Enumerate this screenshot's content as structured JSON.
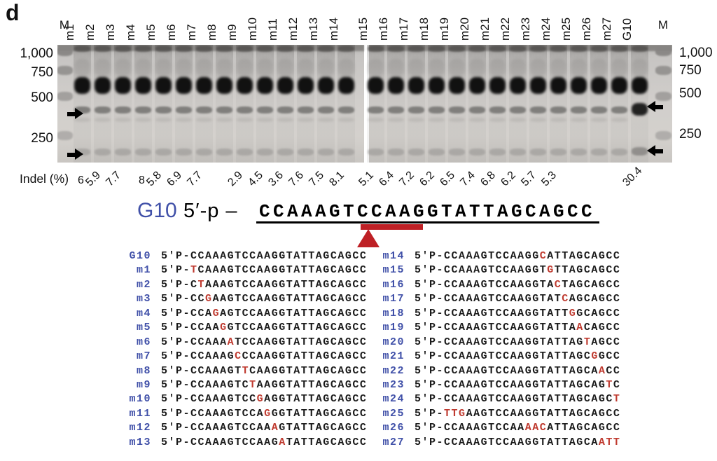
{
  "panel_label": "d",
  "colors": {
    "label_blue": "#4050a8",
    "mutation_red": "#bf3a2f",
    "marker_red": "#be2025"
  },
  "gel": {
    "ladder_label": "M",
    "left_markers": [
      "1,000",
      "750",
      "500",
      "250"
    ],
    "right_markers": [
      "1,000",
      "750",
      "500",
      "250"
    ],
    "panel1_lanes": [
      {
        "label": "m1",
        "indel": "6"
      },
      {
        "label": "m2",
        "indel": "5.9"
      },
      {
        "label": "m3",
        "indel": "7.7"
      },
      {
        "label": "m4",
        "indel": "8"
      },
      {
        "label": "m5",
        "indel": "5.8"
      },
      {
        "label": "m6",
        "indel": "6.9"
      },
      {
        "label": "m7",
        "indel": "7.7"
      },
      {
        "label": "m8",
        "indel": ""
      },
      {
        "label": "m9",
        "indel": "2.9"
      },
      {
        "label": "m10",
        "indel": "4.5"
      },
      {
        "label": "m11",
        "indel": "3.6"
      },
      {
        "label": "m12",
        "indel": "7.6"
      },
      {
        "label": "m13",
        "indel": "7.5"
      },
      {
        "label": "m14",
        "indel": "8.1"
      }
    ],
    "panel2_lanes": [
      {
        "label": "m15",
        "indel": "5.1"
      },
      {
        "label": "m16",
        "indel": "6.4"
      },
      {
        "label": "m17",
        "indel": "7.2"
      },
      {
        "label": "m18",
        "indel": "6.2"
      },
      {
        "label": "m19",
        "indel": "6.5"
      },
      {
        "label": "m20",
        "indel": "7.4"
      },
      {
        "label": "m21",
        "indel": "6.8"
      },
      {
        "label": "m22",
        "indel": "6.2"
      },
      {
        "label": "m23",
        "indel": "5.7"
      },
      {
        "label": "m24",
        "indel": "5.3"
      },
      {
        "label": "m25",
        "indel": ""
      },
      {
        "label": "m26",
        "indel": ""
      },
      {
        "label": "m27",
        "indel": ""
      },
      {
        "label": "G10",
        "indel": "30.4"
      }
    ]
  },
  "indel_row": {
    "label": "Indel (%)"
  },
  "header": {
    "label": "G10",
    "prefix": "5′-p",
    "dash": "–",
    "sequence": "CCAAAGTCCAAGGTATTAGCAGCC"
  },
  "alignment": {
    "seq_prefix": "5'P-",
    "left_rows": [
      {
        "label": "G10",
        "seq": "CCAAAGTCCAAGGTATTAGCAGCC",
        "red": []
      },
      {
        "label": "m1",
        "seq": "TCAAAGTCCAAGGTATTAGCAGCC",
        "red": [
          0
        ]
      },
      {
        "label": "m2",
        "seq": "CTAAAGTCCAAGGTATTAGCAGCC",
        "red": [
          1
        ]
      },
      {
        "label": "m3",
        "seq": "CCGAAGTCCAAGGTATTAGCAGCC",
        "red": [
          2
        ]
      },
      {
        "label": "m4",
        "seq": "CCAGAGTCCAAGGTATTAGCAGCC",
        "red": [
          3
        ]
      },
      {
        "label": "m5",
        "seq": "CCAAGGTCCAAGGTATTAGCAGCC",
        "red": [
          4
        ]
      },
      {
        "label": "m6",
        "seq": "CCAAAATCCAAGGTATTAGCAGCC",
        "red": [
          5
        ]
      },
      {
        "label": "m7",
        "seq": "CCAAAGCCCAAGGTATTAGCAGCC",
        "red": [
          6
        ]
      },
      {
        "label": "m8",
        "seq": "CCAAAGTTCAAGGTATTAGCAGCC",
        "red": [
          7
        ]
      },
      {
        "label": "m9",
        "seq": "CCAAAGTCTAAGGTATTAGCAGCC",
        "red": [
          8
        ]
      },
      {
        "label": "m10",
        "seq": "CCAAAGTCCGAGGTATTAGCAGCC",
        "red": [
          9
        ]
      },
      {
        "label": "m11",
        "seq": "CCAAAGTCCAGGGTATTAGCAGCC",
        "red": [
          10
        ]
      },
      {
        "label": "m12",
        "seq": "CCAAAGTCCAAAGTATTAGCAGCC",
        "red": [
          11
        ]
      },
      {
        "label": "m13",
        "seq": "CCAAAGTCCAAGATATTAGCAGCC",
        "red": [
          12
        ]
      }
    ],
    "right_rows": [
      {
        "label": "m14",
        "seq": "CCAAAGTCCAAGGCATTAGCAGCC",
        "red": [
          13
        ]
      },
      {
        "label": "m15",
        "seq": "CCAAAGTCCAAGGTGTTAGCAGCC",
        "red": [
          14
        ]
      },
      {
        "label": "m16",
        "seq": "CCAAAGTCCAAGGTACTAGCAGCC",
        "red": [
          15
        ]
      },
      {
        "label": "m17",
        "seq": "CCAAAGTCCAAGGTATCAGCAGCC",
        "red": [
          16
        ]
      },
      {
        "label": "m18",
        "seq": "CCAAAGTCCAAGGTATTGGCAGCC",
        "red": [
          17
        ]
      },
      {
        "label": "m19",
        "seq": "CCAAAGTCCAAGGTATTAACAGCC",
        "red": [
          18
        ]
      },
      {
        "label": "m20",
        "seq": "CCAAAGTCCAAGGTATTAGTAGCC",
        "red": [
          19
        ]
      },
      {
        "label": "m21",
        "seq": "CCAAAGTCCAAGGTATTAGCGGCC",
        "red": [
          20
        ]
      },
      {
        "label": "m22",
        "seq": "CCAAAGTCCAAGGTATTAGCAACC",
        "red": [
          21
        ]
      },
      {
        "label": "m23",
        "seq": "CCAAAGTCCAAGGTATTAGCAGTC",
        "red": [
          22
        ]
      },
      {
        "label": "m24",
        "seq": "CCAAAGTCCAAGGTATTAGCAGCT",
        "red": [
          23
        ]
      },
      {
        "label": "m25",
        "seq": "TTGAAGTCCAAGGTATTAGCAGCC",
        "red": [
          0,
          1,
          2
        ]
      },
      {
        "label": "m26",
        "seq": "CCAAAGTCCAAAACATTAGCAGCC",
        "red": [
          11,
          12,
          13
        ]
      },
      {
        "label": "m27",
        "seq": "CCAAAGTCCAAGGTATTAGCAATT",
        "red": [
          21,
          22,
          23
        ]
      }
    ]
  }
}
